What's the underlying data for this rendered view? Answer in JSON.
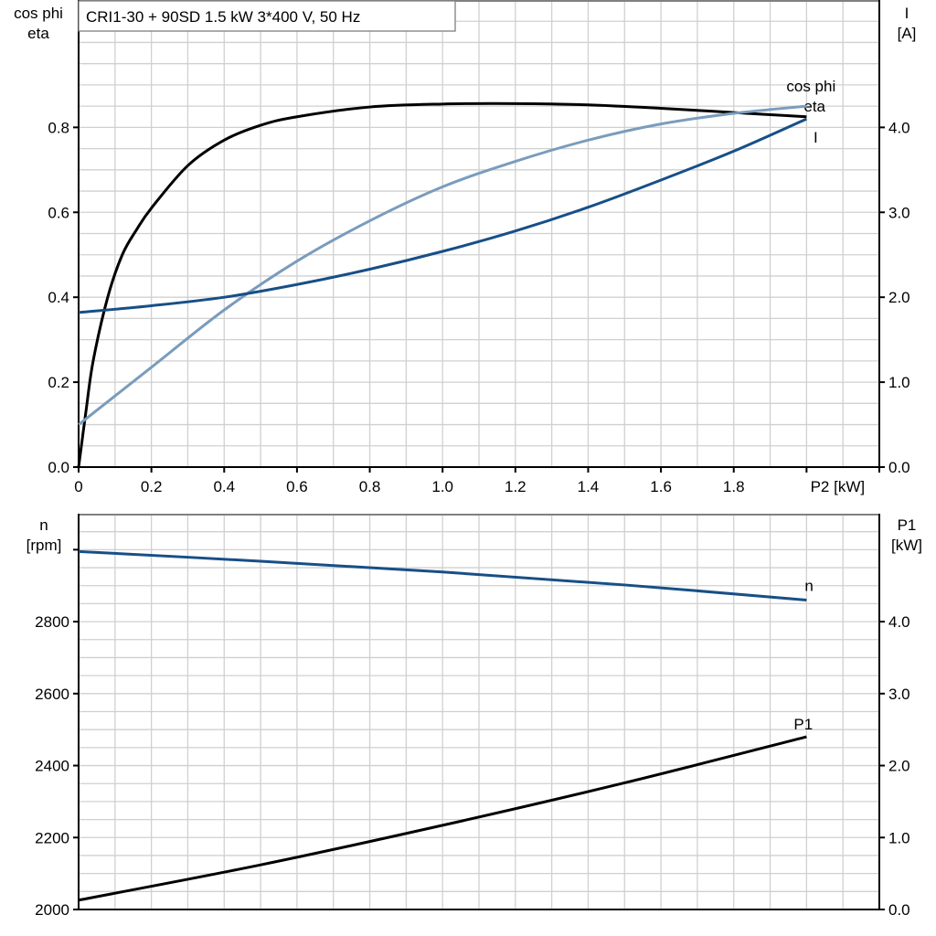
{
  "chart_data": [
    {
      "type": "line",
      "title": "CRI1-30 + 90SD   1.5 kW   3*400 V, 50 Hz",
      "xlabel": "P2 [kW]",
      "ylabel_left": [
        "cos phi",
        "eta"
      ],
      "ylabel_right": [
        "I",
        "[A]"
      ],
      "xlim": [
        0,
        2.2
      ],
      "ylim_left": [
        0,
        1.1
      ],
      "ylim_right": [
        0,
        5.5
      ],
      "x_ticks": [
        "0",
        "0.2",
        "0.4",
        "0.6",
        "0.8",
        "1.0",
        "1.2",
        "1.4",
        "1.6",
        "1.8"
      ],
      "y_ticks_left": [
        "0.0",
        "0.2",
        "0.4",
        "0.6",
        "0.8"
      ],
      "y_ticks_right": [
        "0.0",
        "1.0",
        "2.0",
        "3.0",
        "4.0"
      ],
      "grid": true,
      "series": [
        {
          "name": "eta",
          "axis": "left",
          "color": "#000000",
          "x": [
            0,
            0.02,
            0.04,
            0.08,
            0.12,
            0.16,
            0.2,
            0.3,
            0.4,
            0.5,
            0.6,
            0.8,
            1.0,
            1.2,
            1.4,
            1.6,
            1.8,
            2.0
          ],
          "y": [
            0,
            0.13,
            0.25,
            0.4,
            0.5,
            0.56,
            0.61,
            0.71,
            0.77,
            0.805,
            0.825,
            0.848,
            0.855,
            0.856,
            0.853,
            0.845,
            0.835,
            0.825
          ]
        },
        {
          "name": "cos phi",
          "axis": "left",
          "color": "#7a9cbd",
          "x": [
            0,
            0.2,
            0.4,
            0.6,
            0.8,
            1.0,
            1.2,
            1.4,
            1.6,
            1.8,
            2.0
          ],
          "y": [
            0.1,
            0.235,
            0.37,
            0.485,
            0.58,
            0.66,
            0.72,
            0.77,
            0.808,
            0.833,
            0.85
          ]
        },
        {
          "name": "I",
          "axis": "right",
          "color": "#174f87",
          "x": [
            0,
            0.2,
            0.4,
            0.6,
            0.8,
            1.0,
            1.2,
            1.4,
            1.6,
            1.8,
            2.0
          ],
          "y": [
            1.82,
            1.9,
            2.0,
            2.15,
            2.33,
            2.54,
            2.78,
            3.06,
            3.38,
            3.72,
            4.1
          ]
        }
      ]
    },
    {
      "type": "line",
      "ylabel_left": [
        "n",
        "[rpm]"
      ],
      "ylabel_right": [
        "P1",
        "[kW]"
      ],
      "xlim": [
        0,
        2.2
      ],
      "ylim_left": [
        2000,
        3100
      ],
      "ylim_right": [
        0,
        5.5
      ],
      "y_ticks_left": [
        "2000",
        "2200",
        "2400",
        "2600",
        "2800"
      ],
      "y_ticks_right": [
        "0.0",
        "1.0",
        "2.0",
        "3.0",
        "4.0"
      ],
      "grid": true,
      "series": [
        {
          "name": "n",
          "axis": "left",
          "color": "#174f87",
          "x": [
            0,
            0.5,
            1.0,
            1.5,
            2.0
          ],
          "y": [
            2995,
            2968,
            2938,
            2902,
            2860
          ]
        },
        {
          "name": "P1",
          "axis": "right",
          "color": "#000000",
          "x": [
            0,
            0.5,
            1.0,
            1.5,
            2.0
          ],
          "y": [
            0.13,
            0.62,
            1.17,
            1.76,
            2.4
          ]
        }
      ]
    }
  ]
}
